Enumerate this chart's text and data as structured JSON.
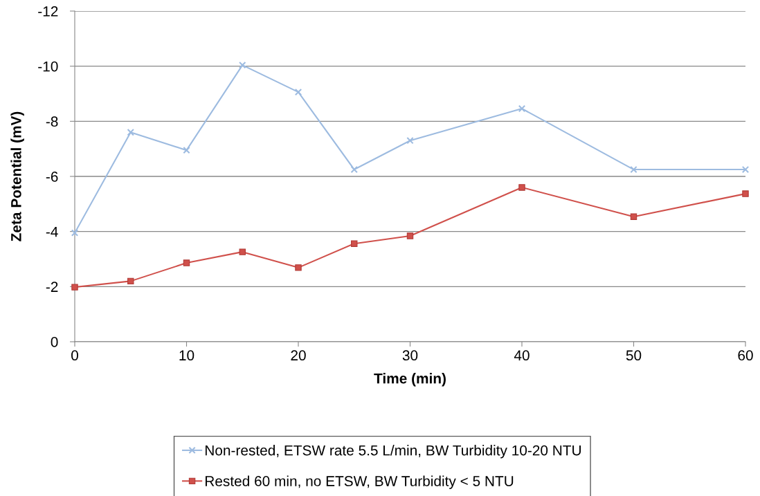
{
  "chart_data": {
    "type": "line",
    "xlabel": "Time (min)",
    "ylabel": "Zeta Potential (mV)",
    "x": [
      0,
      5,
      10,
      15,
      20,
      25,
      30,
      40,
      50,
      60
    ],
    "series": [
      {
        "name": "Non-rested, ETSW rate 5.5 L/min, BW Turbidity 10-20 NTU",
        "color": "#9dbbe0",
        "marker": "cross",
        "values": [
          -3.95,
          -7.6,
          -6.95,
          -10.04,
          -9.06,
          -6.25,
          -7.3,
          -8.46,
          -6.25,
          -6.25
        ]
      },
      {
        "name": "Rested 60 min, no ETSW, BW Turbidity < 5 NTU",
        "color": "#d0504b",
        "marker": "square",
        "values": [
          -1.98,
          -2.2,
          -2.86,
          -3.26,
          -2.69,
          -3.56,
          -3.84,
          -5.6,
          -4.54,
          -5.37
        ]
      }
    ],
    "xlim": [
      0,
      60
    ],
    "xticks": [
      0,
      10,
      20,
      30,
      40,
      50,
      60
    ],
    "ylim": [
      0,
      -12
    ],
    "yticks": [
      0,
      -2,
      -4,
      -6,
      -8,
      -10,
      -12
    ],
    "grid": "y",
    "legend": "bottom",
    "line_style": "solid"
  }
}
